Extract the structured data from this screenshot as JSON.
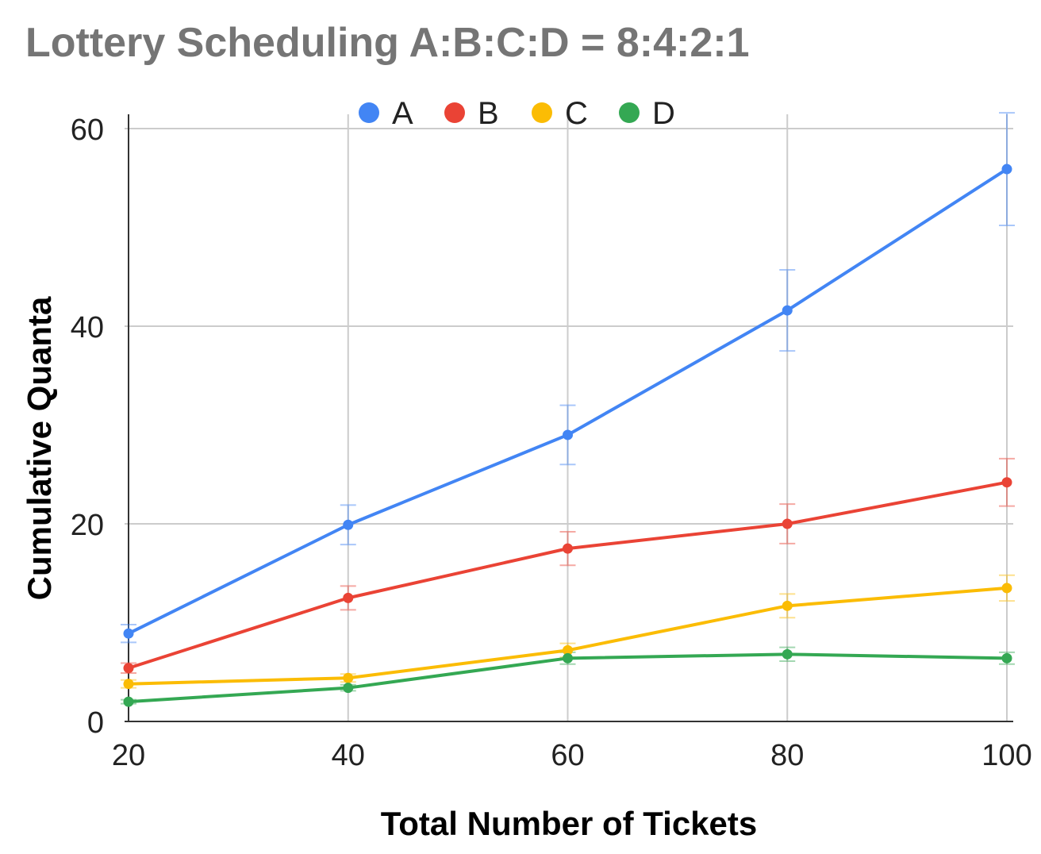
{
  "chart_data": {
    "type": "line",
    "title": "Lottery Scheduling A:B:C:D = 8:4:2:1",
    "xlabel": "Total Number of Tickets",
    "ylabel": "Cumulative Quanta",
    "x": [
      20,
      40,
      60,
      80,
      100
    ],
    "xlim": [
      20,
      100
    ],
    "ylim": [
      0,
      60
    ],
    "xticks": [
      "20",
      "40",
      "60",
      "80",
      "100"
    ],
    "yticks": [
      "0",
      "20",
      "40",
      "60"
    ],
    "grid": true,
    "legend_position": "top",
    "error_bars": true,
    "series": [
      {
        "name": "A",
        "color": "#4285F4",
        "values": [
          8.9,
          19.9,
          29.0,
          41.6,
          55.9
        ],
        "err": [
          0.9,
          2.0,
          3.0,
          4.1,
          5.7
        ]
      },
      {
        "name": "B",
        "color": "#EA4335",
        "values": [
          5.4,
          12.5,
          17.5,
          20.0,
          24.2
        ],
        "err": [
          0.5,
          1.2,
          1.7,
          2.0,
          2.4
        ]
      },
      {
        "name": "C",
        "color": "#FBBC04",
        "values": [
          3.8,
          4.4,
          7.2,
          11.7,
          13.5
        ],
        "err": [
          0.4,
          0.4,
          0.7,
          1.2,
          1.3
        ]
      },
      {
        "name": "D",
        "color": "#34A853",
        "values": [
          2.0,
          3.4,
          6.4,
          6.8,
          6.4
        ],
        "err": [
          0.2,
          0.3,
          0.6,
          0.7,
          0.6
        ]
      }
    ]
  }
}
